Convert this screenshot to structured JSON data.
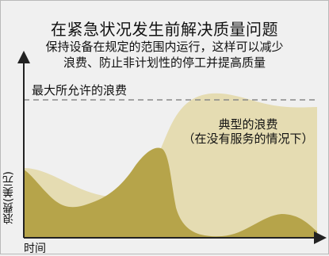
{
  "title": "在紧急状况发生前解决质量问题",
  "subtitle_line1": "保持设备在规定的范围内运行，这样可以减少",
  "subtitle_line2": "浪费、防止非计划性的停工并提高质量",
  "max_waste_label": "最大所允许的浪费",
  "typical_label_line1": "典型的浪费",
  "typical_label_line2": "（在没有服务的情况下）",
  "y_axis_label": "浪费(美元)",
  "x_axis_label": "时间",
  "colors": {
    "background": "#f0f0f0",
    "typical_fill": "#e5dcb2",
    "managed_fill": "#b6a44a",
    "axis": "#222222",
    "threshold_line": "#888888"
  }
}
